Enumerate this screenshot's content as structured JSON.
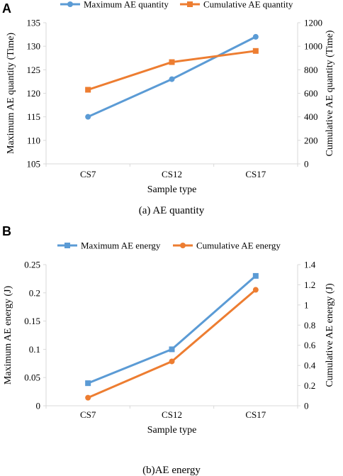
{
  "colors": {
    "blue": "#5b9bd5",
    "orange": "#ed7d31",
    "axis": "#d9d9d9"
  },
  "chart_data": [
    {
      "type": "line",
      "panel_label": "A",
      "caption": "(a)  AE quantity",
      "categories": [
        "CS7",
        "CS12",
        "CS17"
      ],
      "xlabel": "Sample type",
      "ylabel": "Maximum AE quantity (Time)",
      "y2label": "Cumulative AE quantity (Time)",
      "ylim": [
        105,
        135
      ],
      "yticks": [
        "105",
        "110",
        "115",
        "120",
        "125",
        "130",
        "135"
      ],
      "y2lim": [
        0,
        1200
      ],
      "y2ticks": [
        "0",
        "200",
        "400",
        "600",
        "800",
        "1000",
        "1200"
      ],
      "grid": false,
      "legend_position": "top",
      "series": [
        {
          "name": "Maximum AE quantity",
          "axis": "left",
          "marker": "circle",
          "color": "blue",
          "values": [
            115,
            123,
            132
          ]
        },
        {
          "name": "Cumulative AE quantity",
          "axis": "right",
          "marker": "square",
          "color": "orange",
          "values": [
            630,
            865,
            960
          ]
        }
      ]
    },
    {
      "type": "line",
      "panel_label": "B",
      "caption": "(b)AE energy",
      "categories": [
        "CS7",
        "CS12",
        "CS17"
      ],
      "xlabel": "Sample type",
      "ylabel": "Maximum AE energy (J)",
      "y2label": "Cumulative AE energy (J)",
      "ylim": [
        0,
        0.25
      ],
      "yticks": [
        "0",
        "0.05",
        "0.1",
        "0.15",
        "0.2",
        "0.25"
      ],
      "y2lim": [
        0,
        1.4
      ],
      "y2ticks": [
        "0",
        "0.2",
        "0.4",
        "0.6",
        "0.8",
        "1",
        "1.2",
        "1.4"
      ],
      "grid": false,
      "legend_position": "top",
      "series": [
        {
          "name": "Maximum AE energy",
          "axis": "left",
          "marker": "square",
          "color": "blue",
          "values": [
            0.04,
            0.1,
            0.23
          ]
        },
        {
          "name": "Cumulative AE energy",
          "axis": "right",
          "marker": "circle",
          "color": "orange",
          "values": [
            0.08,
            0.44,
            1.15
          ]
        }
      ]
    }
  ]
}
